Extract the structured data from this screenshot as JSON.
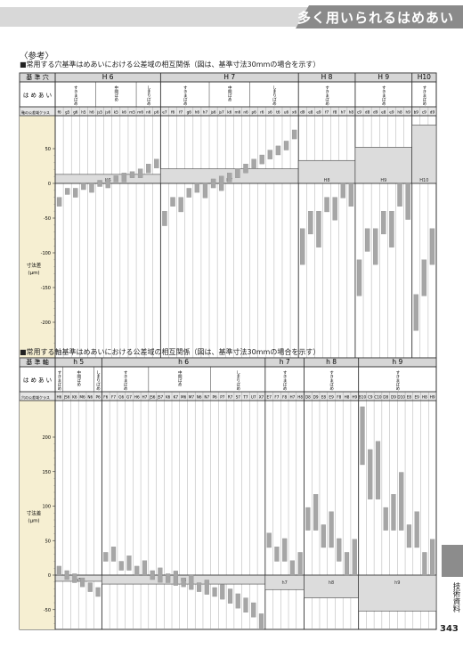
{
  "header": {
    "title": "多く用いられるはめあい"
  },
  "reference_label": "〈参考〉",
  "chart1": {
    "title": "■常用する穴基準はめあいにおける公差域の相互関係（図は、基準寸法30mmの場合を示す）",
    "row_base_label": "基 準 穴",
    "row_fit_label": "は め あ い",
    "row_class_label": "軸の公差域クラス",
    "ylabel": "寸法差",
    "yunit": "(μm)",
    "groups": [
      {
        "name": "H 6",
        "fits": [
          "すきまばめ",
          "中間ばめ",
          "しまりばめ"
        ],
        "classes": [
          "f6",
          "g5",
          "g6",
          "h5",
          "h6",
          "js5",
          "js6",
          "k5",
          "k6",
          "m5",
          "m6",
          "n6",
          "p6"
        ],
        "fitcols": [
          5,
          5,
          3
        ]
      },
      {
        "name": "H 7",
        "fits": [
          "すきまばめ",
          "中間ばめ",
          "しまりばめ"
        ],
        "classes": [
          "e7",
          "f6",
          "f7",
          "g6",
          "h6",
          "h7",
          "js6",
          "js7",
          "k6",
          "m6",
          "n6",
          "p6",
          "r6",
          "s6",
          "t6",
          "u6",
          "x6"
        ],
        "fitcols": [
          6,
          5,
          6
        ]
      },
      {
        "name": "H 8",
        "fits": [
          "すきまばめ"
        ],
        "classes": [
          "d9",
          "e8",
          "e9",
          "f7",
          "f8",
          "h7",
          "h8"
        ],
        "fitcols": [
          7
        ]
      },
      {
        "name": "H 9",
        "fits": [
          "すきまばめ"
        ],
        "classes": [
          "c9",
          "d8",
          "d9",
          "e8",
          "e9",
          "h8",
          "h9"
        ],
        "fitcols": [
          7
        ]
      },
      {
        "name": "H10",
        "fits": [
          "すきまばめ"
        ],
        "classes": [
          "b9",
          "c9",
          "d9"
        ],
        "fitcols": [
          3
        ]
      }
    ],
    "yticks": [
      "50",
      "0",
      "-50",
      "-100",
      "-150",
      "-200"
    ],
    "zone_labels": [
      "H6",
      "H7",
      "H8",
      "H9",
      "H10"
    ]
  },
  "chart2": {
    "title": "■常用する軸基準はめあいにおける公差域の相互関係（図は、基準寸法30mmの場合を示す）",
    "row_base_label": "基 準 軸",
    "row_fit_label": "は め あ い",
    "row_class_label": "穴の公差域クラス",
    "ylabel": "寸法差",
    "yunit": "(μm)",
    "groups": [
      {
        "name": "h 5",
        "fits": [
          "すきまばめ",
          "中間ばめ",
          "しまりばめ"
        ],
        "classes": [
          "H6",
          "JS6",
          "K6",
          "M6",
          "N6",
          "P6"
        ],
        "fitcols": [
          1,
          4,
          1
        ]
      },
      {
        "name": "h 6",
        "fits": [
          "すきまばめ",
          "中間ばめ",
          "しまりばめ"
        ],
        "classes": [
          "F6",
          "F7",
          "G6",
          "G7",
          "H6",
          "H7",
          "JS6",
          "JS7",
          "K6",
          "K7",
          "M6",
          "M7",
          "N6",
          "N7",
          "P6",
          "P7",
          "R7",
          "S7",
          "T7",
          "U7",
          "X7"
        ],
        "fitcols": [
          6,
          8,
          7
        ]
      },
      {
        "name": "h 7",
        "fits": [
          "すきまばめ"
        ],
        "classes": [
          "E7",
          "F7",
          "F8",
          "H7",
          "H8"
        ],
        "fitcols": [
          5
        ]
      },
      {
        "name": "h 8",
        "fits": [
          "すきまばめ"
        ],
        "classes": [
          "D8",
          "D9",
          "E8",
          "E9",
          "F8",
          "H8",
          "H9"
        ],
        "fitcols": [
          7
        ]
      },
      {
        "name": "h 9",
        "fits": [
          "すきまばめ"
        ],
        "classes": [
          "B10",
          "C9",
          "C10",
          "D8",
          "D9",
          "D10",
          "E8",
          "E9",
          "H8",
          "H9"
        ],
        "fitcols": [
          10
        ]
      }
    ],
    "yticks": [
      "200",
      "150",
      "100",
      "50",
      "0",
      "-50"
    ],
    "zone_labels": [
      "h5",
      "h6",
      "h7",
      "h8",
      "h9"
    ]
  },
  "sidebar": {
    "label": "技術資料",
    "page_number": "343"
  },
  "chart_data": [
    {
      "type": "bar",
      "title": "■常用する穴基準はめあいにおける公差域の相互関係（図は、基準寸法30mmの場合を示す）",
      "ylabel": "寸法差 (μm)",
      "ylim": [
        -210,
        80
      ],
      "zones": [
        [
          0,
          13
        ],
        [
          0,
          21
        ],
        [
          0,
          33
        ],
        [
          0,
          52
        ],
        [
          0,
          84
        ]
      ],
      "bars": [
        [
          -20,
          -33
        ],
        [
          -7,
          -16
        ],
        [
          -7,
          -20
        ],
        [
          0,
          -9
        ],
        [
          0,
          -13
        ],
        [
          4.5,
          -4.5
        ],
        [
          6.5,
          -6.5
        ],
        [
          11,
          2
        ],
        [
          15,
          2
        ],
        [
          17,
          8
        ],
        [
          21,
          8
        ],
        [
          28,
          15
        ],
        [
          35,
          22
        ],
        [
          -40,
          -61
        ],
        [
          -20,
          -33
        ],
        [
          -20,
          -41
        ],
        [
          -7,
          -20
        ],
        [
          0,
          -13
        ],
        [
          0,
          -21
        ],
        [
          6.5,
          -6.5
        ],
        [
          10.5,
          -10.5
        ],
        [
          15,
          2
        ],
        [
          21,
          8
        ],
        [
          28,
          15
        ],
        [
          35,
          22
        ],
        [
          41,
          28
        ],
        [
          48,
          35
        ],
        [
          54,
          41
        ],
        [
          61,
          48
        ],
        [
          77,
          64
        ],
        [
          -65,
          -117
        ],
        [
          -40,
          -73
        ],
        [
          -40,
          -92
        ],
        [
          -20,
          -41
        ],
        [
          -20,
          -53
        ],
        [
          0,
          -21
        ],
        [
          0,
          -33
        ],
        [
          -110,
          -162
        ],
        [
          -65,
          -98
        ],
        [
          -65,
          -117
        ],
        [
          -40,
          -73
        ],
        [
          -40,
          -92
        ],
        [
          0,
          -33
        ],
        [
          0,
          -52
        ],
        [
          -160,
          -212
        ],
        [
          -110,
          -162
        ],
        [
          -65,
          -117
        ]
      ]
    },
    {
      "type": "bar",
      "title": "■常用する軸基準はめあいにおける公差域の相互関係（図は、基準寸法30mmの場合を示す）",
      "ylabel": "寸法差 (μm)",
      "ylim": [
        -70,
        240
      ],
      "zones": [
        [
          0,
          -9
        ],
        [
          0,
          -13
        ],
        [
          0,
          -21
        ],
        [
          0,
          -33
        ],
        [
          0,
          -52
        ]
      ],
      "bars": [
        [
          13,
          0
        ],
        [
          6.5,
          -6.5
        ],
        [
          2,
          -11
        ],
        [
          -4,
          -17
        ],
        [
          -11,
          -24
        ],
        [
          -18,
          -31
        ],
        [
          33,
          20
        ],
        [
          41,
          20
        ],
        [
          20,
          7
        ],
        [
          28,
          7
        ],
        [
          13,
          0
        ],
        [
          21,
          0
        ],
        [
          6.5,
          -6.5
        ],
        [
          10.5,
          -10.5
        ],
        [
          2,
          -11
        ],
        [
          6,
          -15
        ],
        [
          -4,
          -17
        ],
        [
          0,
          -21
        ],
        [
          -11,
          -24
        ],
        [
          -7,
          -28
        ],
        [
          -18,
          -31
        ],
        [
          -14,
          -35
        ],
        [
          -20,
          -41
        ],
        [
          -27,
          -48
        ],
        [
          -33,
          -54
        ],
        [
          -40,
          -61
        ],
        [
          -56,
          -77
        ],
        [
          61,
          40
        ],
        [
          41,
          20
        ],
        [
          53,
          20
        ],
        [
          21,
          0
        ],
        [
          33,
          0
        ],
        [
          98,
          65
        ],
        [
          117,
          65
        ],
        [
          73,
          40
        ],
        [
          92,
          40
        ],
        [
          53,
          20
        ],
        [
          33,
          0
        ],
        [
          52,
          0
        ],
        [
          244,
          160
        ],
        [
          182,
          110
        ],
        [
          194,
          110
        ],
        [
          98,
          65
        ],
        [
          117,
          65
        ],
        [
          149,
          65
        ],
        [
          73,
          40
        ],
        [
          92,
          40
        ],
        [
          33,
          0
        ],
        [
          52,
          0
        ]
      ]
    }
  ]
}
